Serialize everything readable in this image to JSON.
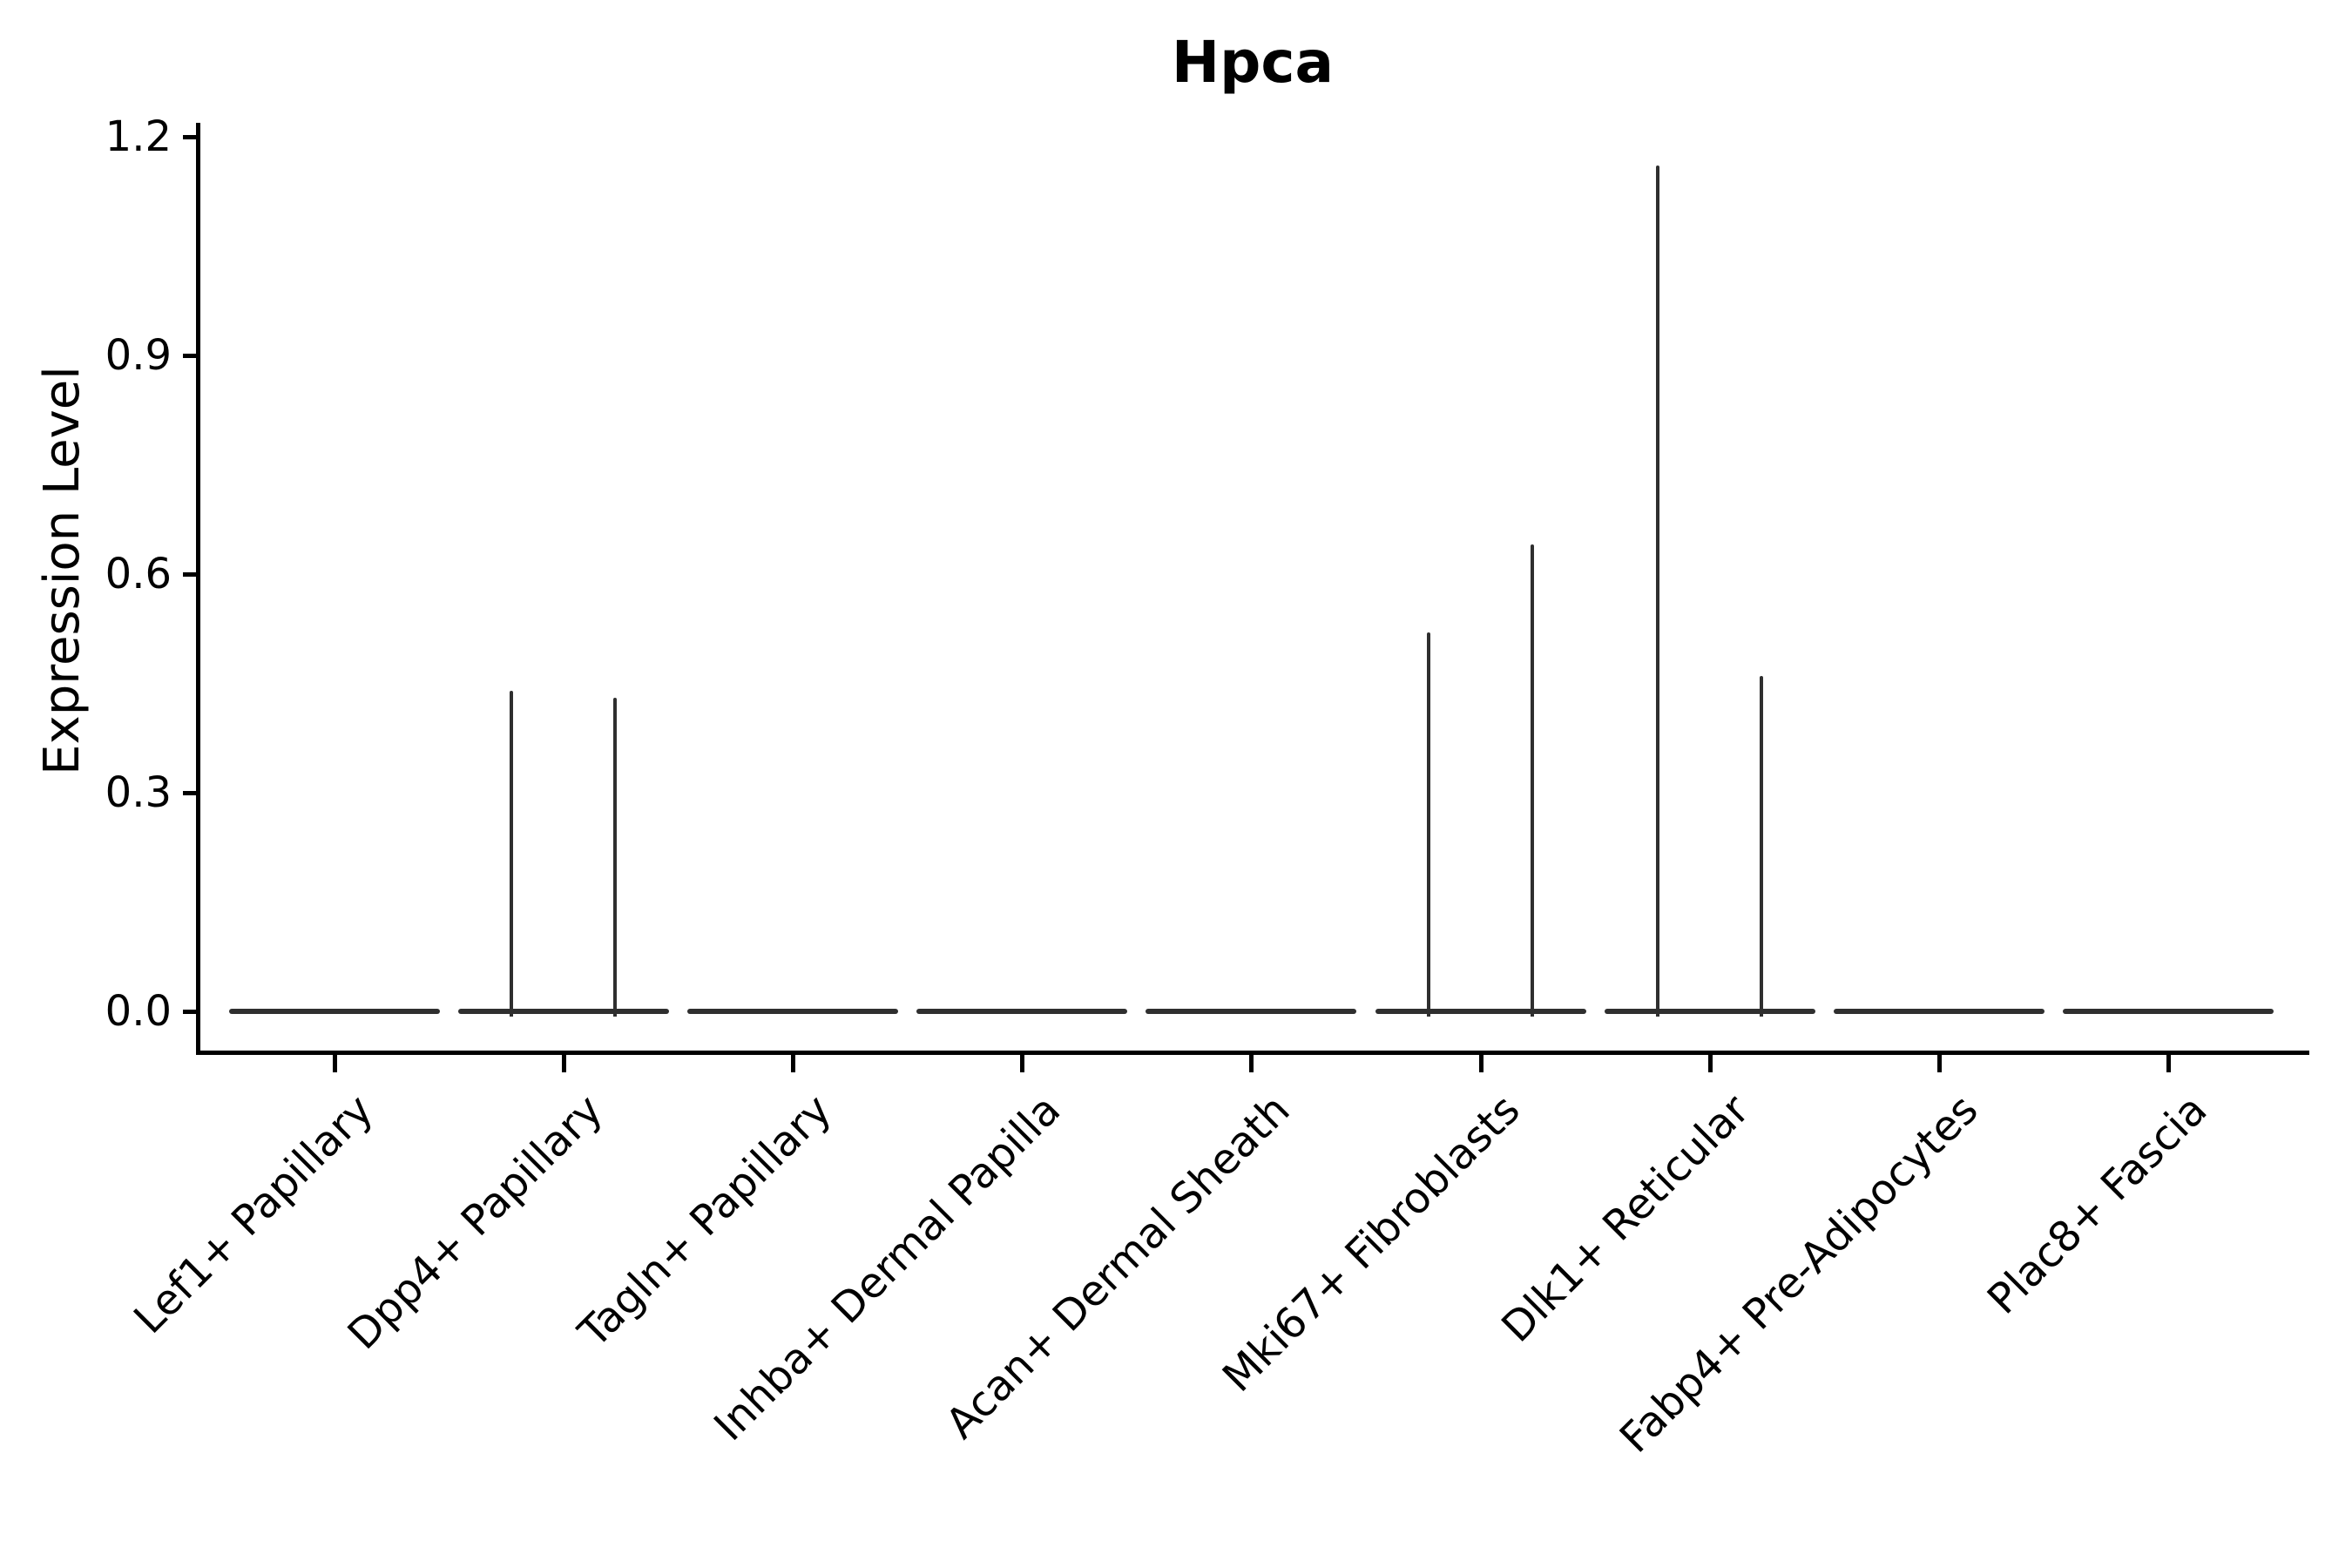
{
  "figure": {
    "title": "Hpca",
    "ylabel": "Expression Level"
  },
  "chart_data": {
    "type": "violin",
    "title": "Hpca",
    "xlabel": "",
    "ylabel": "Expression Level",
    "ylim": [
      -0.05,
      1.25
    ],
    "grid": false,
    "legend": "none",
    "background_color": "#ffffff",
    "axis_color": "#000000",
    "violin_outline_color": "#2f2f2f",
    "ytick_values": [
      0.0,
      0.3,
      0.6,
      0.9,
      1.2
    ],
    "ytick_labels": [
      "0.0",
      "0.3",
      "0.6",
      "0.9",
      "1.2"
    ],
    "categories": [
      "Lef1+ Papillary",
      "Dpp4+ Papillary",
      "Tagln+ Papillary",
      "Inhba+ Dermal Papilla",
      "Acan+ Dermal Sheath",
      "Mki67+ Fibroblasts",
      "Dlk1+ Reticular",
      "Fabp4+ Pre-Adipocytes",
      "Plac8+ Fascia"
    ],
    "violins": [
      {
        "category": "Lef1+ Papillary",
        "baseline_value": 0.0,
        "spike_values": []
      },
      {
        "category": "Dpp4+ Papillary",
        "baseline_value": 0.0,
        "spike_values": [
          0.44,
          0.43
        ]
      },
      {
        "category": "Tagln+ Papillary",
        "baseline_value": 0.0,
        "spike_values": []
      },
      {
        "category": "Inhba+ Dermal Papilla",
        "baseline_value": 0.0,
        "spike_values": []
      },
      {
        "category": "Acan+ Dermal Sheath",
        "baseline_value": 0.0,
        "spike_values": []
      },
      {
        "category": "Mki67+ Fibroblasts",
        "baseline_value": 0.0,
        "spike_values": [
          0.52,
          0.64
        ]
      },
      {
        "category": "Dlk1+ Reticular",
        "baseline_value": 0.0,
        "spike_values": [
          1.16,
          0.46
        ]
      },
      {
        "category": "Fabp4+ Pre-Adipocytes",
        "baseline_value": 0.0,
        "spike_values": []
      },
      {
        "category": "Plac8+ Fascia",
        "baseline_value": 0.0,
        "spike_values": []
      }
    ]
  }
}
